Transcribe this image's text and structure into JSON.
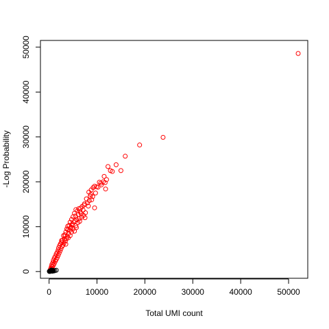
{
  "chart_data": {
    "type": "scatter",
    "title": "",
    "xlabel": "Total UMI count",
    "ylabel": "-Log Probability",
    "xlim": [
      -1800,
      54000
    ],
    "ylim": [
      -1500,
      51500
    ],
    "x_ticks": [
      0,
      10000,
      20000,
      30000,
      40000,
      50000
    ],
    "x_tick_labels": [
      "0",
      "10000",
      "20000",
      "30000",
      "40000",
      "50000"
    ],
    "y_ticks": [
      0,
      10000,
      20000,
      30000,
      40000,
      50000
    ],
    "y_tick_labels": [
      "0",
      "10000",
      "20000",
      "30000",
      "40000",
      "50000"
    ],
    "grid": false,
    "marker": "open-circle",
    "series": [
      {
        "color": "#ff0000",
        "points": [
          [
            52000,
            48600
          ],
          [
            23800,
            29900
          ],
          [
            18900,
            28200
          ],
          [
            15900,
            25700
          ],
          [
            14000,
            23800
          ],
          [
            15000,
            22500
          ],
          [
            13200,
            22300
          ],
          [
            12300,
            23400
          ],
          [
            12800,
            22500
          ],
          [
            11500,
            21200
          ],
          [
            12000,
            20500
          ],
          [
            11300,
            20000
          ],
          [
            10800,
            19700
          ],
          [
            11700,
            19800
          ],
          [
            10500,
            19900
          ],
          [
            11800,
            18400
          ],
          [
            9500,
            19000
          ],
          [
            9900,
            18900
          ],
          [
            9200,
            18700
          ],
          [
            8800,
            18200
          ],
          [
            9700,
            17500
          ],
          [
            8300,
            17700
          ],
          [
            8700,
            17200
          ],
          [
            9100,
            16700
          ],
          [
            9500,
            14200
          ],
          [
            8400,
            15800
          ],
          [
            7800,
            16200
          ],
          [
            8000,
            15300
          ],
          [
            7400,
            15100
          ],
          [
            8900,
            16000
          ],
          [
            7300,
            14800
          ],
          [
            6900,
            14500
          ],
          [
            6600,
            14100
          ],
          [
            7100,
            13700
          ],
          [
            6200,
            14000
          ],
          [
            5900,
            13500
          ],
          [
            5600,
            13800
          ],
          [
            6500,
            13300
          ],
          [
            5300,
            13000
          ],
          [
            6100,
            12700
          ],
          [
            5500,
            12400
          ],
          [
            6800,
            12100
          ],
          [
            7500,
            12000
          ],
          [
            5000,
            12200
          ],
          [
            6300,
            11800
          ],
          [
            5800,
            11500
          ],
          [
            4700,
            11600
          ],
          [
            5200,
            11000
          ],
          [
            4900,
            10600
          ],
          [
            6000,
            10900
          ],
          [
            4400,
            11000
          ],
          [
            5600,
            10200
          ],
          [
            4200,
            10300
          ],
          [
            4600,
            9900
          ],
          [
            3900,
            10100
          ],
          [
            5000,
            9500
          ],
          [
            4300,
            9200
          ],
          [
            3700,
            9500
          ],
          [
            4700,
            8800
          ],
          [
            4100,
            8500
          ],
          [
            3500,
            8800
          ],
          [
            5300,
            9000
          ],
          [
            3300,
            8200
          ],
          [
            4400,
            8000
          ],
          [
            3800,
            7800
          ],
          [
            3000,
            8000
          ],
          [
            3600,
            7300
          ],
          [
            3200,
            7200
          ],
          [
            4000,
            7500
          ],
          [
            2800,
            7000
          ],
          [
            3400,
            6800
          ],
          [
            2600,
            6500
          ],
          [
            3100,
            6300
          ],
          [
            2400,
            6200
          ],
          [
            2900,
            5900
          ],
          [
            2200,
            5800
          ],
          [
            2700,
            5600
          ],
          [
            2000,
            5300
          ],
          [
            3500,
            6100
          ],
          [
            2500,
            5100
          ],
          [
            1900,
            4800
          ],
          [
            2300,
            4600
          ],
          [
            1700,
            4300
          ],
          [
            2100,
            4100
          ],
          [
            1500,
            3900
          ],
          [
            1900,
            3600
          ],
          [
            1300,
            3400
          ],
          [
            1700,
            3100
          ],
          [
            1100,
            3000
          ],
          [
            1500,
            2700
          ],
          [
            900,
            2500
          ],
          [
            1300,
            2300
          ],
          [
            800,
            2000
          ],
          [
            1100,
            1800
          ],
          [
            600,
            1600
          ],
          [
            900,
            1400
          ],
          [
            500,
            1200
          ],
          [
            700,
            1000
          ],
          [
            400,
            800
          ],
          [
            600,
            600
          ],
          [
            300,
            500
          ],
          [
            450,
            300
          ],
          [
            5400,
            11300
          ],
          [
            6700,
            12900
          ],
          [
            7600,
            13100
          ],
          [
            4800,
            10400
          ],
          [
            3900,
            9300
          ],
          [
            5700,
            9800
          ],
          [
            6400,
            11200
          ],
          [
            7200,
            12500
          ],
          [
            4500,
            9700
          ],
          [
            3300,
            7900
          ],
          [
            2600,
            6900
          ],
          [
            8200,
            14600
          ],
          [
            8600,
            16800
          ],
          [
            10200,
            18800
          ],
          [
            10900,
            19300
          ]
        ]
      },
      {
        "color": "#000000",
        "points": [
          [
            1500,
            300
          ],
          [
            1200,
            200
          ],
          [
            900,
            250
          ],
          [
            800,
            150
          ],
          [
            700,
            300
          ],
          [
            600,
            100
          ],
          [
            550,
            200
          ],
          [
            500,
            350
          ],
          [
            450,
            120
          ],
          [
            400,
            250
          ],
          [
            350,
            80
          ],
          [
            300,
            180
          ],
          [
            260,
            60
          ],
          [
            220,
            140
          ],
          [
            180,
            40
          ],
          [
            150,
            100
          ],
          [
            120,
            30
          ],
          [
            100,
            70
          ],
          [
            80,
            20
          ],
          [
            60,
            50
          ],
          [
            950,
            120
          ],
          [
            650,
            60
          ]
        ]
      }
    ]
  }
}
